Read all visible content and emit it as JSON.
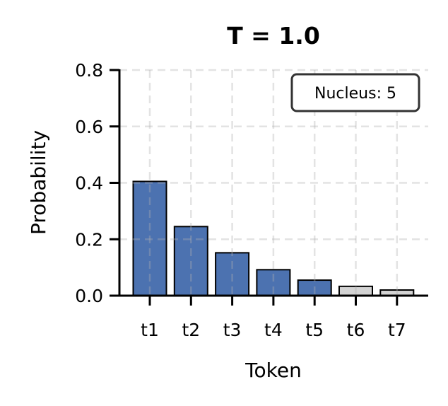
{
  "chart_data": {
    "type": "bar",
    "title": "T = 1.0",
    "xlabel": "Token",
    "ylabel": "Probability",
    "categories": [
      "t1",
      "t2",
      "t3",
      "t4",
      "t5",
      "t6",
      "t7"
    ],
    "values": [
      0.405,
      0.245,
      0.152,
      0.092,
      0.055,
      0.033,
      0.02
    ],
    "in_nucleus": [
      true,
      true,
      true,
      true,
      true,
      false,
      false
    ],
    "ylim": [
      0,
      0.8
    ],
    "yticks": [
      0.0,
      0.2,
      0.4,
      0.6,
      0.8
    ],
    "ytick_labels": [
      "0.0",
      "0.2",
      "0.4",
      "0.6",
      "0.8"
    ],
    "grid": true,
    "grid_style": "dashed",
    "annotation": "Nucleus: 5",
    "annotation_position": "upper right",
    "colors": {
      "nucleus": "#4c72b0",
      "excluded": "#d3d3d3",
      "edge": "#000000",
      "grid": "#cccccc",
      "annotation_border": "#333333"
    }
  }
}
